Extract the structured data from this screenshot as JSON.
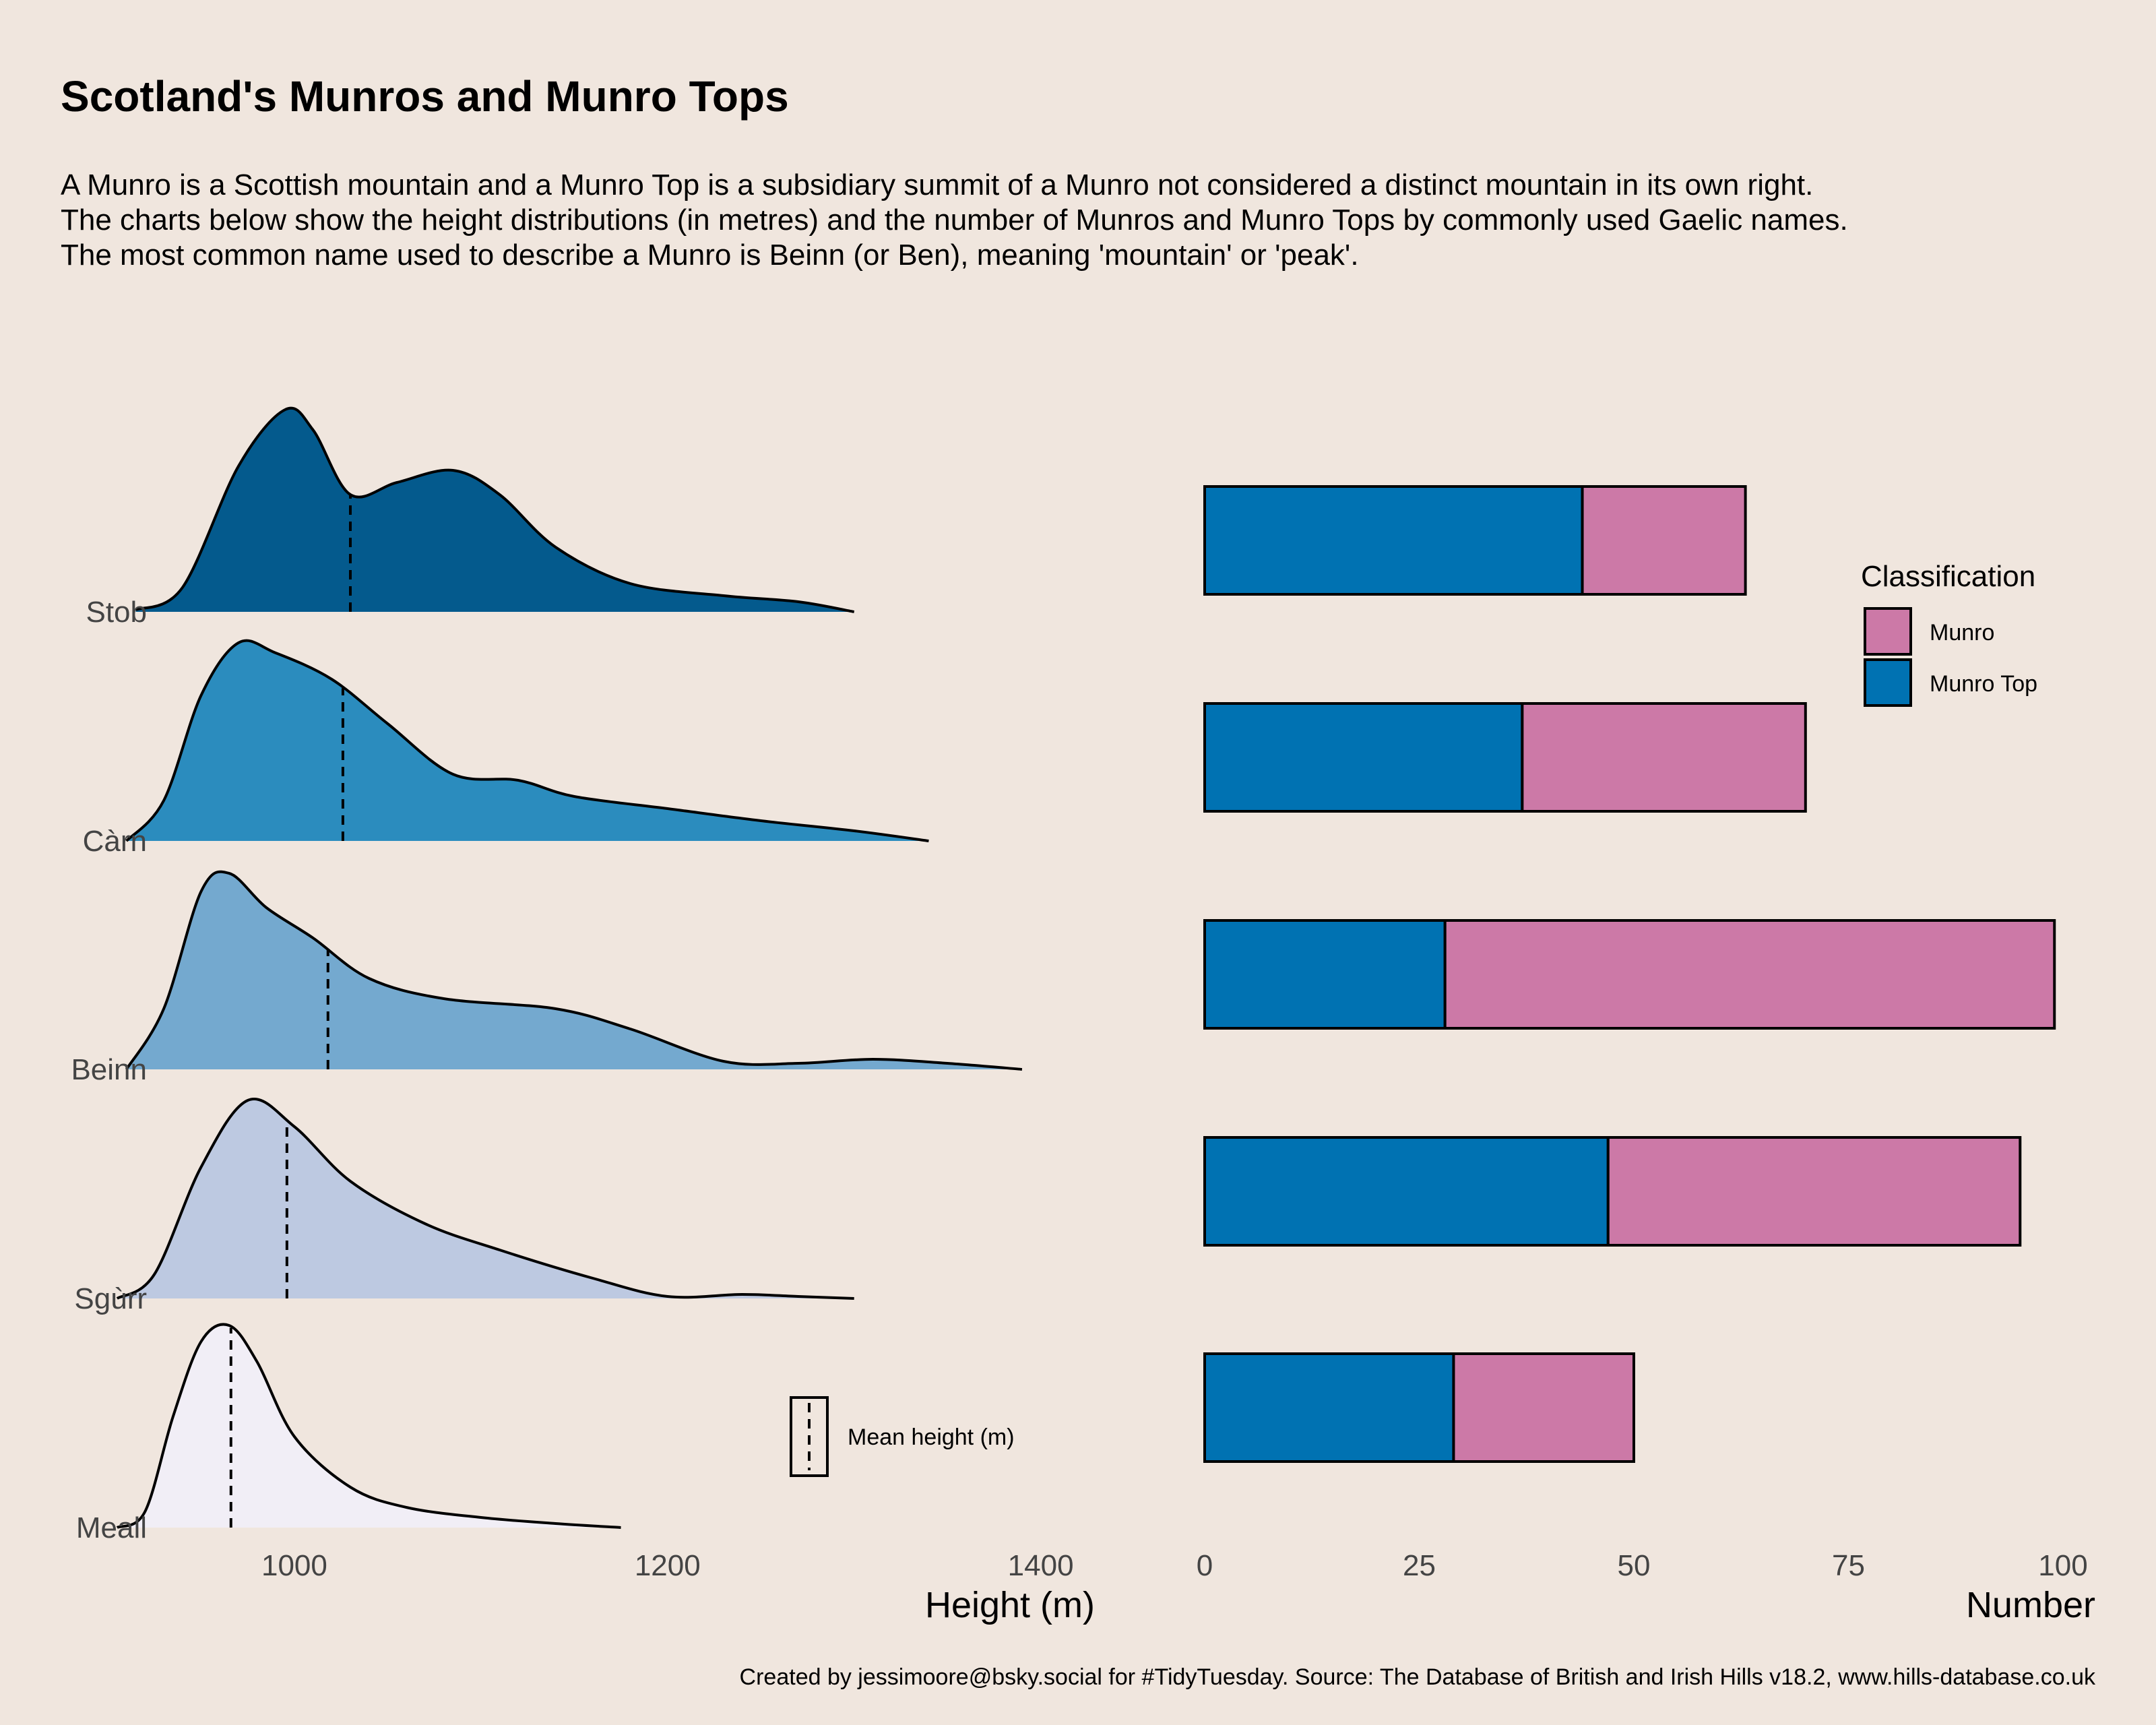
{
  "title": "Scotland's Munros and Munro Tops",
  "subtitle": [
    "A Munro is a Scottish mountain and a Munro Top is a subsidiary summit of a Munro not considered a distinct mountain in its own right.",
    "The charts below show the height distributions (in metres) and the number of Munros and Munro Tops by commonly used Gaelic names.",
    "The most common name used to describe a Munro is Beinn (or Ben), meaning 'mountain' or 'peak'."
  ],
  "caption": "Created by jessimoore@bsky.social for #TidyTuesday. Source: The Database of British and Irish Hills v18.2, www.hills-database.co.uk",
  "chart_data": [
    {
      "type": "area",
      "subtype": "ridgeline-density",
      "xlabel": "Height (m)",
      "xticks": [
        1000,
        1200,
        1400
      ],
      "xlim": [
        900,
        1420
      ],
      "categories": [
        "Stob",
        "Càrn",
        "Beinn",
        "Sgùrr",
        "Meall"
      ],
      "mean_legend_label": "Mean height (m)",
      "series": [
        {
          "name": "Stob",
          "color": "#045a8d",
          "mean": 1030,
          "x": [
            915,
            940,
            970,
            995,
            1010,
            1030,
            1055,
            1085,
            1110,
            1140,
            1180,
            1230,
            1270,
            1300
          ],
          "density": [
            0.01,
            0.12,
            0.72,
            1.0,
            0.9,
            0.58,
            0.64,
            0.7,
            0.58,
            0.32,
            0.14,
            0.08,
            0.05,
            0.0
          ]
        },
        {
          "name": "Càrn",
          "color": "#2b8cbe",
          "mean": 1026,
          "x": [
            910,
            930,
            950,
            970,
            990,
            1020,
            1050,
            1085,
            1120,
            1150,
            1200,
            1250,
            1300,
            1340
          ],
          "density": [
            0.0,
            0.2,
            0.72,
            0.98,
            0.93,
            0.8,
            0.58,
            0.33,
            0.3,
            0.22,
            0.16,
            0.1,
            0.05,
            0.0
          ]
        },
        {
          "name": "Beinn",
          "color": "#74a9cf",
          "mean": 1018,
          "x": [
            910,
            930,
            950,
            965,
            985,
            1010,
            1040,
            1080,
            1140,
            1180,
            1230,
            1270,
            1310,
            1350,
            1390
          ],
          "density": [
            0.0,
            0.3,
            0.88,
            0.97,
            0.8,
            0.65,
            0.45,
            0.35,
            0.3,
            0.2,
            0.04,
            0.03,
            0.05,
            0.03,
            0.0
          ]
        },
        {
          "name": "Sgùrr",
          "color": "#bdc9e1",
          "mean": 996,
          "x": [
            905,
            925,
            950,
            975,
            1000,
            1030,
            1070,
            1110,
            1160,
            1200,
            1240,
            1270,
            1300
          ],
          "density": [
            0.0,
            0.12,
            0.65,
            0.98,
            0.85,
            0.58,
            0.37,
            0.24,
            0.1,
            0.01,
            0.02,
            0.01,
            0.0
          ]
        },
        {
          "name": "Meall",
          "color": "#f1eef6",
          "mean": 966,
          "x": [
            905,
            920,
            935,
            950,
            965,
            980,
            1000,
            1030,
            1060,
            1100,
            1140,
            1175
          ],
          "density": [
            0.0,
            0.08,
            0.55,
            0.92,
            1.0,
            0.82,
            0.45,
            0.2,
            0.1,
            0.05,
            0.02,
            0.0
          ]
        }
      ]
    },
    {
      "type": "bar",
      "orientation": "horizontal",
      "stacked": true,
      "xlabel": "Number",
      "xlim": [
        0,
        100
      ],
      "xticks": [
        0,
        25,
        50,
        75,
        100
      ],
      "categories": [
        "Stob",
        "Càrn",
        "Beinn",
        "Sgùrr",
        "Meall"
      ],
      "legend_title": "Classification",
      "legend_position": "top-right",
      "series": [
        {
          "name": "Munro Top",
          "color": "#0072b2",
          "values": [
            44,
            37,
            28,
            47,
            29
          ]
        },
        {
          "name": "Munro",
          "color": "#cc79a7",
          "values": [
            19,
            33,
            71,
            48,
            21
          ]
        }
      ]
    }
  ]
}
